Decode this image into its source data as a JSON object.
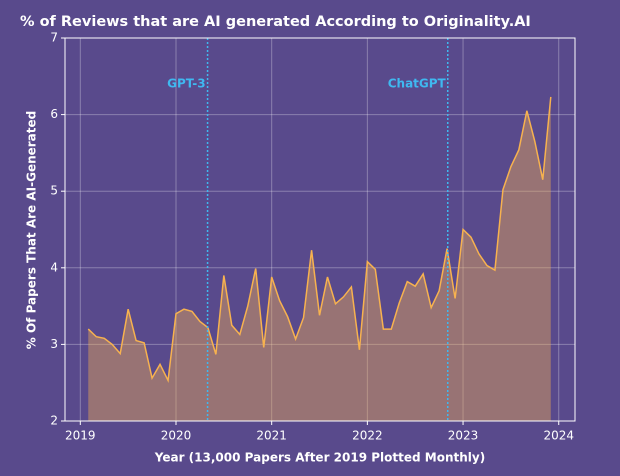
{
  "chart_data": {
    "type": "line",
    "title": "% of Reviews that are AI generated According to Originality.AI",
    "x_label": "Year (13,000 Papers After 2019 Plotted Monthly)",
    "y_label": "% Of Papers That Are AI-Generated",
    "x": [
      2019.083,
      2019.167,
      2019.25,
      2019.333,
      2019.417,
      2019.5,
      2019.583,
      2019.667,
      2019.75,
      2019.833,
      2019.917,
      2020.0,
      2020.083,
      2020.167,
      2020.25,
      2020.333,
      2020.417,
      2020.5,
      2020.583,
      2020.667,
      2020.75,
      2020.833,
      2020.917,
      2021.0,
      2021.083,
      2021.167,
      2021.25,
      2021.333,
      2021.417,
      2021.5,
      2021.583,
      2021.667,
      2021.75,
      2021.833,
      2021.917,
      2022.0,
      2022.083,
      2022.167,
      2022.25,
      2022.333,
      2022.417,
      2022.5,
      2022.583,
      2022.667,
      2022.75,
      2022.833,
      2022.917,
      2023.0,
      2023.083,
      2023.167,
      2023.25,
      2023.333,
      2023.417,
      2023.5,
      2023.583,
      2023.667,
      2023.75,
      2023.833,
      2023.917
    ],
    "series": [
      {
        "color": "#f7b24f",
        "values": [
          3.2,
          3.1,
          3.08,
          3.0,
          2.88,
          3.46,
          3.05,
          3.02,
          2.56,
          2.74,
          2.53,
          3.4,
          3.46,
          3.43,
          3.3,
          3.22,
          2.87,
          3.9,
          3.25,
          3.13,
          3.5,
          3.99,
          2.96,
          3.88,
          3.57,
          3.36,
          3.07,
          3.35,
          4.23,
          3.38,
          3.88,
          3.53,
          3.62,
          3.75,
          2.93,
          4.08,
          3.98,
          3.2,
          3.2,
          3.54,
          3.82,
          3.76,
          3.92,
          3.48,
          3.7,
          4.25,
          3.6,
          4.5,
          4.4,
          4.18,
          4.03,
          3.97,
          5.02,
          5.32,
          5.54,
          6.05,
          5.65,
          5.15,
          6.23
        ]
      }
    ],
    "annotations": [
      {
        "text": "GPT-3",
        "x": 2020.33,
        "color": "#3fb8f0"
      },
      {
        "text": "ChatGPT",
        "x": 2022.84,
        "color": "#3fb8f0"
      }
    ],
    "xlim": [
      2018.84,
      2024.17
    ],
    "xticks": [
      2019,
      2020,
      2021,
      2022,
      2023,
      2024
    ],
    "ylim": [
      2,
      7
    ],
    "yticks": [
      2,
      3,
      4,
      5,
      6,
      7
    ],
    "grid": true
  }
}
